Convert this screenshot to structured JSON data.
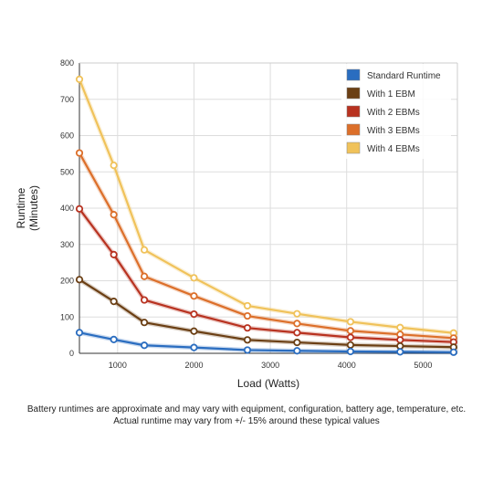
{
  "chart_data": {
    "type": "line",
    "xlabel": "Load (Watts)",
    "ylabel_lines": [
      "Runtime",
      "(Minutes)"
    ],
    "xlim": [
      500,
      5450
    ],
    "ylim": [
      0,
      800
    ],
    "x_ticks": [
      1000,
      2000,
      3000,
      4000,
      5000
    ],
    "y_ticks": [
      0,
      100,
      200,
      300,
      400,
      500,
      600,
      700,
      800
    ],
    "grid": true,
    "legend_position": "top-right",
    "x": [
      500,
      950,
      1350,
      2000,
      2700,
      3350,
      4050,
      4700,
      5400
    ],
    "series": [
      {
        "name": "Standard Runtime",
        "color": "#2a6dc0",
        "values": [
          57,
          38,
          22,
          16,
          9,
          7,
          5,
          4,
          3
        ]
      },
      {
        "name": "With 1 EBM",
        "color": "#6b3f14",
        "values": [
          203,
          143,
          85,
          61,
          37,
          30,
          23,
          20,
          17
        ]
      },
      {
        "name": "With 2 EBMs",
        "color": "#b83220",
        "values": [
          398,
          272,
          147,
          108,
          70,
          57,
          44,
          37,
          31
        ]
      },
      {
        "name": "With 3 EBMs",
        "color": "#dc6f2a",
        "values": [
          552,
          382,
          212,
          158,
          103,
          82,
          62,
          52,
          42
        ]
      },
      {
        "name": "With 4 EBMs",
        "color": "#f0c25a",
        "values": [
          755,
          518,
          285,
          208,
          131,
          109,
          87,
          71,
          56
        ]
      }
    ]
  },
  "footnote": {
    "line1": "Battery runtimes are approximate and may vary with equipment, configuration, battery age, temperature, etc.",
    "line2": "Actual runtime may vary from +/- 15% around these typical values"
  }
}
